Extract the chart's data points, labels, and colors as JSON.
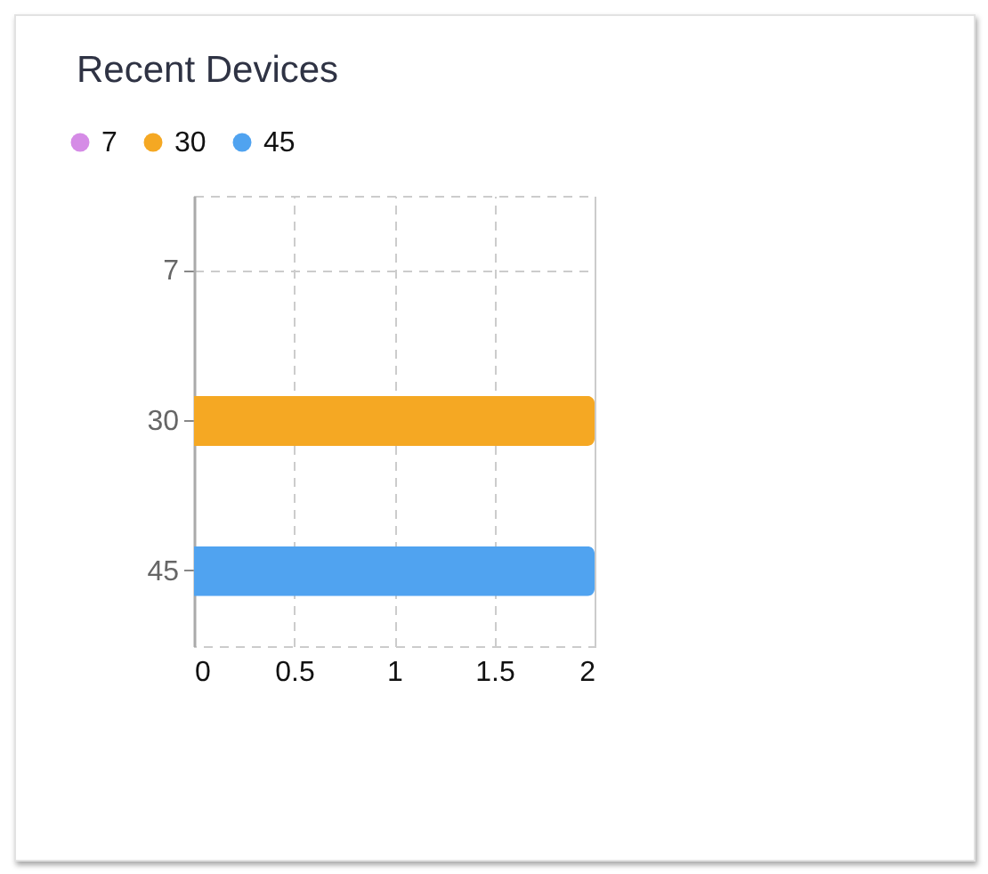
{
  "chart_data": {
    "type": "bar",
    "orientation": "horizontal",
    "title": "Recent Devices",
    "categories": [
      "7",
      "30",
      "45"
    ],
    "series": [
      {
        "name": "7",
        "color": "#d58be6",
        "values": [
          0,
          null,
          null
        ]
      },
      {
        "name": "30",
        "color": "#f5a823",
        "values": [
          null,
          2,
          null
        ]
      },
      {
        "name": "45",
        "color": "#50a3f0",
        "values": [
          null,
          null,
          2
        ]
      }
    ],
    "xlim": [
      0,
      2
    ],
    "xticks": [
      0,
      0.5,
      1,
      1.5,
      2
    ],
    "grid": true,
    "legend": "top left"
  }
}
